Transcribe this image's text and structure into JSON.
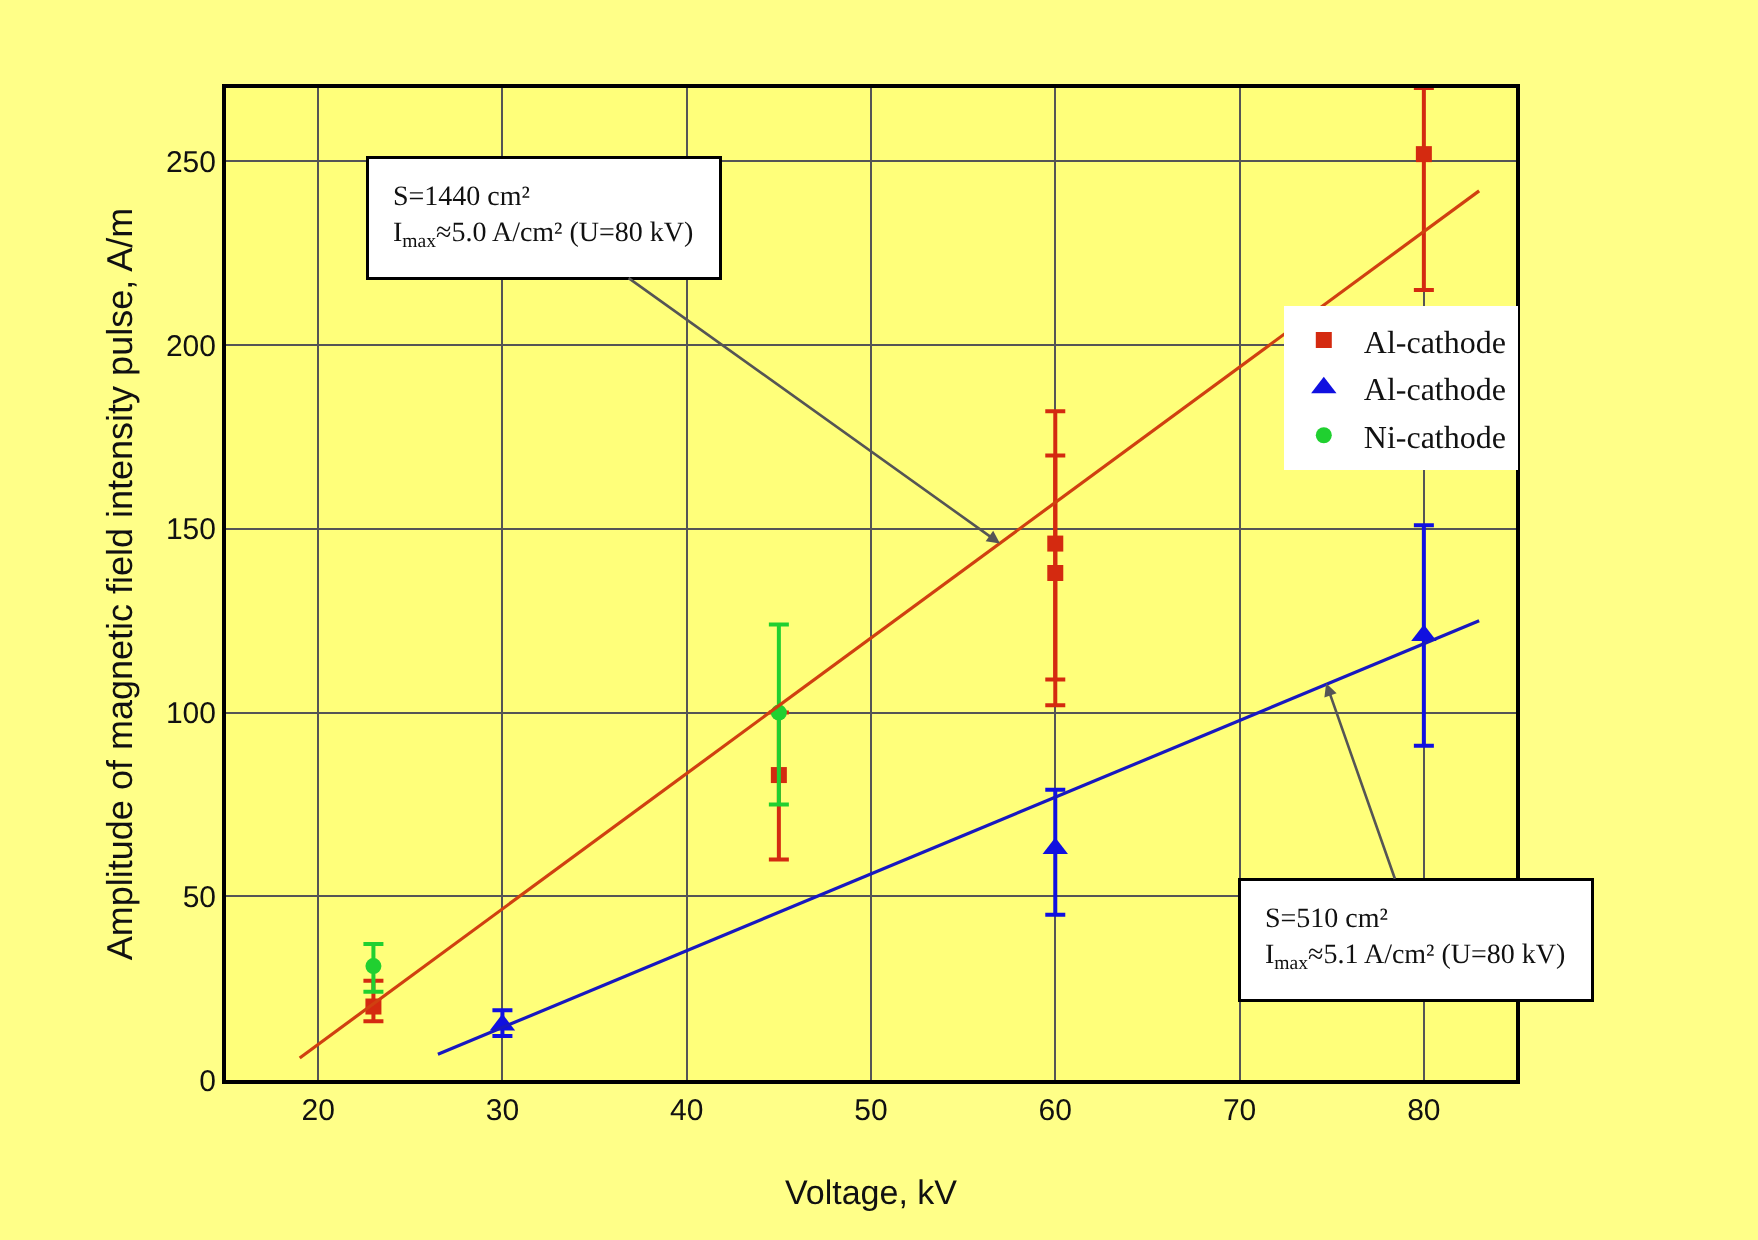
{
  "chart_data": {
    "type": "scatter",
    "xlabel": "Voltage, kV",
    "ylabel": "Amplitude of magnetic field intensity pulse, A/m",
    "xlim": [
      15,
      85
    ],
    "xticks": [
      20,
      30,
      40,
      50,
      60,
      70,
      80
    ],
    "ylim": [
      0,
      270
    ],
    "yticks": [
      0,
      50,
      100,
      150,
      200,
      250
    ],
    "grid": true,
    "legend": "top right",
    "series": [
      {
        "name": "Al-cathode",
        "color": "#d42a10",
        "marker": "square",
        "x": [
          23,
          45,
          60,
          60,
          80
        ],
        "values": [
          20,
          83,
          146,
          138,
          252
        ],
        "errors": [
          [
            16,
            27
          ],
          [
            60,
            100
          ],
          [
            109,
            182
          ],
          [
            102,
            170
          ],
          [
            215,
            270
          ]
        ]
      },
      {
        "name": "Al-cathode",
        "color": "#1010e0",
        "marker": "triangle",
        "x": [
          30,
          60,
          80
        ],
        "values": [
          15,
          63,
          121
        ],
        "errors": [
          [
            12,
            19
          ],
          [
            45,
            79
          ],
          [
            91,
            151
          ]
        ]
      },
      {
        "name": "Ni-cathode",
        "color": "#20d030",
        "marker": "circle",
        "x": [
          23,
          45
        ],
        "values": [
          31,
          100
        ],
        "errors": [
          [
            24,
            37
          ],
          [
            75,
            124
          ]
        ]
      },
      {
        "type": "line",
        "color": "#d04010",
        "x": [
          19,
          83
        ],
        "values": [
          6,
          242
        ]
      },
      {
        "type": "line",
        "color": "#1818c0",
        "x": [
          26.5,
          83
        ],
        "values": [
          7,
          125
        ]
      }
    ],
    "annotations": [
      {
        "text": "S=1440 cm²\nI$_{max}$≈5.0 A/cm² (U=80 kV)",
        "x": 57,
        "y": 146
      },
      {
        "text": "S=510 cm²\nI$_{max}$≈5.1 A/cm² (U=80 kV)",
        "x": 74.7,
        "y": 108
      }
    ]
  }
}
